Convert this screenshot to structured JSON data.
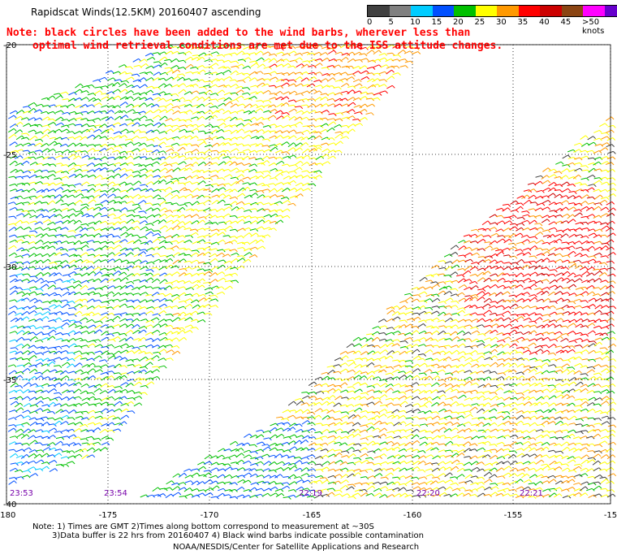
{
  "header": {
    "title": "Rapidscat Winds(12.5KM) 20160407 ascending",
    "note_line1": "Note: black circles have been added to the wind barbs, wherever less than",
    "note_line2": "optimal wind retrieval conditions are met due to the ISS attitude changes."
  },
  "colorbar": {
    "labels": [
      "0",
      "5",
      "10",
      "15",
      "20",
      "25",
      "30",
      "35",
      "40",
      "45",
      ">50 knots"
    ],
    "colors": [
      "#404040",
      "#808080",
      "#00ccff",
      "#0050ff",
      "#00c000",
      "#ffff00",
      "#ff9900",
      "#ff0000",
      "#cc0000",
      "#8b4513",
      "#ff00ff",
      "#6600cc"
    ]
  },
  "map": {
    "lat_labels": [
      "-20",
      "-25",
      "-30",
      "-35",
      "-40"
    ],
    "lon_labels": [
      "-180",
      "-175",
      "-170",
      "-165",
      "-160",
      "-155",
      "-15"
    ],
    "time_labels": [
      "23:53",
      "23:54",
      "22:19",
      "22:20",
      "22:21"
    ],
    "lat_range": [
      -40,
      -20
    ],
    "lon_range": [
      -180,
      -150
    ]
  },
  "footer": {
    "line1": "Note: 1) Times are GMT 2)Times along bottom correspond to measurement at ~30S",
    "line2": "3)Data buffer is 22 hrs from 20160407 4) Black wind barbs indicate possible contamination",
    "line3": "NOAA/NESDIS/Center for Satellite Applications and Research"
  }
}
